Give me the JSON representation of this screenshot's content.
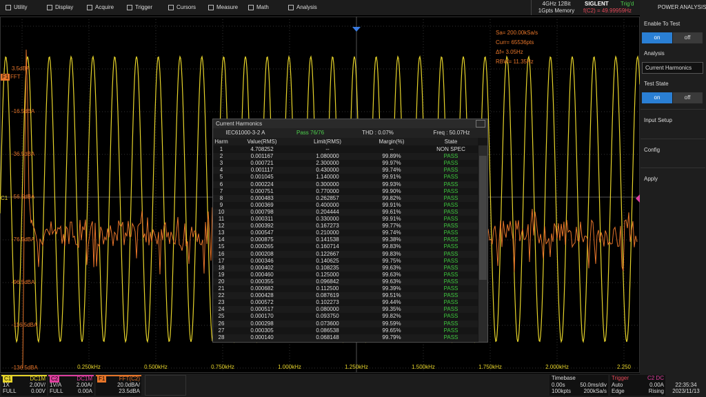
{
  "menu": [
    "Utility",
    "Display",
    "Acquire",
    "Trigger",
    "Cursors",
    "Measure",
    "Math",
    "Analysis"
  ],
  "status": {
    "spec": [
      "4GHz 12Bit",
      "1Gpts Memory"
    ],
    "brand": "SIGLENT",
    "trig": "Trig'd",
    "freq": "f(C2) = 49.99959Hz"
  },
  "side_panel": {
    "title": "POWER ANALYSIS",
    "enable_label": "Enable To Test",
    "enable_on": "on",
    "enable_off": "off",
    "analysis_label": "Analysis",
    "analysis_value": "Current Harmonics",
    "state_label": "Test State",
    "state_on": "on",
    "state_off": "off",
    "items": [
      "Input Setup",
      "Config",
      "Apply"
    ]
  },
  "plot": {
    "info": [
      "Sa= 200.00kSa/s",
      "Curr= 65536pts",
      "Δf= 3.05Hz",
      "RBW= 11.35Hz"
    ],
    "y_labels": [
      "3.5dBA",
      "-16.5dBA",
      "-36.5dBA",
      "-56.5dBA",
      "-76.5dBA",
      "-96.5dBA",
      "-116.5dBA",
      "-136.5dBA"
    ],
    "x_labels": [
      "0.250kHz",
      "0.500kHz",
      "0.750kHz",
      "1.000kHz",
      "1.250kHz",
      "1.500kHz",
      "1.750kHz",
      "2.000kHz",
      "2.250"
    ],
    "markers": {
      "f1": "F1",
      "fft": "FFT",
      "c1": "C1"
    }
  },
  "dialog": {
    "title": "Current Harmonics",
    "standard": "IEC61000-3-2 A",
    "pass": "Pass 76/76",
    "thd": "THD : 0.07%",
    "freq": "Freq : 50.07Hz",
    "columns": [
      "Harm",
      "Value(RMS)",
      "Limit(RMS)",
      "Margin(%)",
      "State"
    ],
    "rows": [
      [
        "1",
        "4.708252",
        "--",
        "--",
        "NON SPEC"
      ],
      [
        "2",
        "0.001167",
        "1.080000",
        "99.89%",
        "PASS"
      ],
      [
        "3",
        "0.000721",
        "2.300000",
        "99.97%",
        "PASS"
      ],
      [
        "4",
        "0.001117",
        "0.430000",
        "99.74%",
        "PASS"
      ],
      [
        "5",
        "0.001045",
        "1.140000",
        "99.91%",
        "PASS"
      ],
      [
        "6",
        "0.000224",
        "0.300000",
        "99.93%",
        "PASS"
      ],
      [
        "7",
        "0.000751",
        "0.770000",
        "99.90%",
        "PASS"
      ],
      [
        "8",
        "0.000483",
        "0.262857",
        "99.82%",
        "PASS"
      ],
      [
        "9",
        "0.000369",
        "0.400000",
        "99.91%",
        "PASS"
      ],
      [
        "10",
        "0.000798",
        "0.204444",
        "99.61%",
        "PASS"
      ],
      [
        "11",
        "0.000311",
        "0.330000",
        "99.91%",
        "PASS"
      ],
      [
        "12",
        "0.000392",
        "0.167273",
        "99.77%",
        "PASS"
      ],
      [
        "13",
        "0.000547",
        "0.210000",
        "99.74%",
        "PASS"
      ],
      [
        "14",
        "0.000875",
        "0.141538",
        "99.38%",
        "PASS"
      ],
      [
        "15",
        "0.000265",
        "0.160714",
        "99.83%",
        "PASS"
      ],
      [
        "16",
        "0.000208",
        "0.122667",
        "99.83%",
        "PASS"
      ],
      [
        "17",
        "0.000346",
        "0.140625",
        "99.75%",
        "PASS"
      ],
      [
        "18",
        "0.000402",
        "0.108235",
        "99.63%",
        "PASS"
      ],
      [
        "19",
        "0.000460",
        "0.125000",
        "99.63%",
        "PASS"
      ],
      [
        "20",
        "0.000355",
        "0.096842",
        "99.63%",
        "PASS"
      ],
      [
        "21",
        "0.000682",
        "0.112500",
        "99.39%",
        "PASS"
      ],
      [
        "22",
        "0.000428",
        "0.087619",
        "99.51%",
        "PASS"
      ],
      [
        "23",
        "0.000572",
        "0.102273",
        "99.44%",
        "PASS"
      ],
      [
        "24",
        "0.000517",
        "0.080000",
        "99.35%",
        "PASS"
      ],
      [
        "25",
        "0.000170",
        "0.093750",
        "99.82%",
        "PASS"
      ],
      [
        "26",
        "0.000298",
        "0.073600",
        "99.59%",
        "PASS"
      ],
      [
        "27",
        "0.000305",
        "0.086538",
        "99.65%",
        "PASS"
      ],
      [
        "28",
        "0.000140",
        "0.068148",
        "99.79%",
        "PASS"
      ]
    ]
  },
  "bottom": {
    "c1": {
      "label": "C1",
      "coupling": "DC1M",
      "probe": "1X",
      "scale": "2.00V/",
      "bw": "FULL",
      "offset": "0.00V"
    },
    "c2": {
      "label": "C2",
      "coupling": "DC1M",
      "probe": "1V/A",
      "scale": "2.00A/",
      "bw": "FULL",
      "offset": "0.00A"
    },
    "f1": {
      "label": "F1",
      "source": "FFT(C2)",
      "scale": "20.0dBA/",
      "offset": "23.5dBA"
    },
    "timebase": {
      "label": "Timebase",
      "delay": "0.00s",
      "scale": "50.0ms/div",
      "points": "100kpts",
      "rate": "200kSa/s"
    },
    "trigger": {
      "label": "Trigger",
      "source": "C2 DC",
      "mode": "Auto",
      "level": "0.00A",
      "type": "Edge",
      "slope": "Rising"
    },
    "clock": {
      "time": "22:35:34",
      "date": "2023/11/13"
    }
  }
}
